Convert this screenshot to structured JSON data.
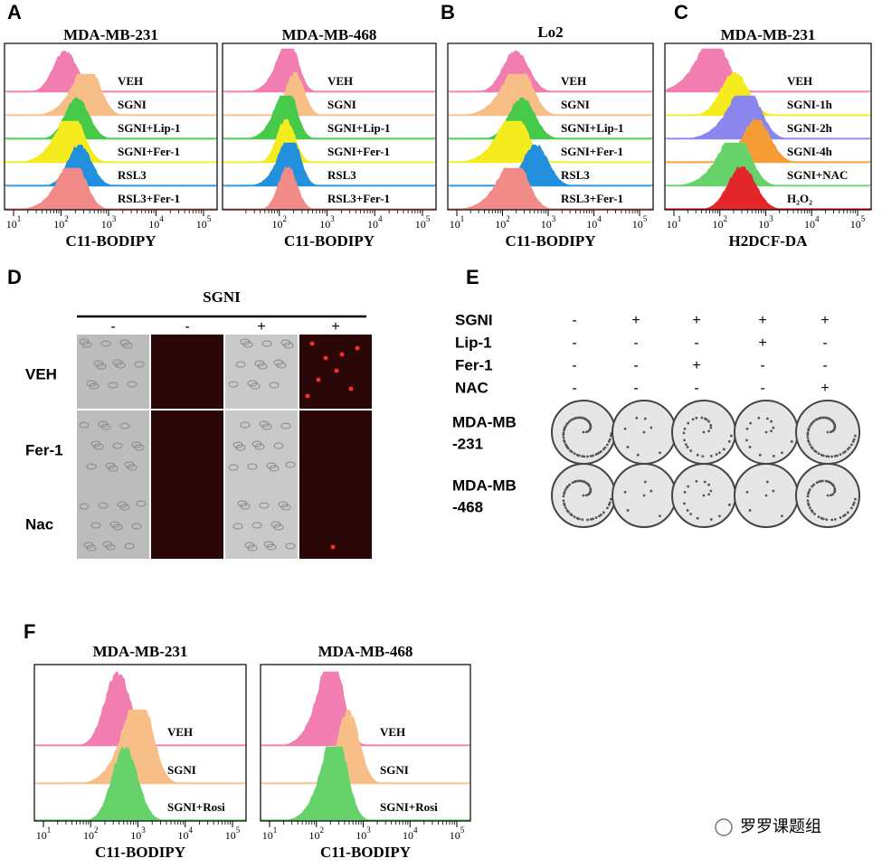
{
  "panel_labels": [
    "A",
    "B",
    "C",
    "D",
    "E",
    "F"
  ],
  "flow_panels": [
    {
      "title": "MDA-MB-231",
      "samples": [
        "VEH",
        "SGNI",
        "SGNI+Lip-1",
        "SGNI+Fer-1",
        "RSL3",
        "RSL3+Fer-1"
      ],
      "x_label": "C11-BODIPY",
      "tick_base": "10",
      "tick_exponents": [
        1,
        2,
        3,
        4,
        5
      ]
    },
    {
      "title": "MDA-MB-468",
      "samples": [
        "VEH",
        "SGNI",
        "SGNI+Lip-1",
        "SGNI+Fer-1",
        "RSL3",
        "RSL3+Fer-1"
      ],
      "x_label": "C11-BODIPY",
      "tick_base": "10",
      "tick_exponents": [
        2,
        3,
        4,
        5
      ]
    },
    {
      "title": "Lo2",
      "samples": [
        "VEH",
        "SGNI",
        "SGNI+Lip-1",
        "SGNI+Fer-1",
        "RSL3",
        "RSL3+Fer-1"
      ],
      "x_label": "C11-BODIPY",
      "tick_base": "10",
      "tick_exponents": [
        1,
        2,
        3,
        4,
        5
      ]
    },
    {
      "title": "MDA-MB-231",
      "samples": [
        "VEH",
        "SGNI-1h",
        "SGNI-2h",
        "SGNI-4h",
        "SGNI+NAC",
        "H₂O₂"
      ],
      "x_label": "H2DCF-DA",
      "tick_base": "10",
      "tick_exponents": [
        1,
        2,
        3,
        4,
        5
      ]
    },
    {
      "title": "MDA-MB-231",
      "samples": [
        "VEH",
        "SGNI",
        "SGNI+Rosi"
      ],
      "x_label": "C11-BODIPY",
      "tick_base": "10",
      "tick_exponents": [
        1,
        2,
        3,
        4,
        5
      ]
    },
    {
      "title": "MDA-MB-468",
      "samples": [
        "VEH",
        "SGNI",
        "SGNI+Rosi"
      ],
      "x_label": "C11-BODIPY",
      "tick_base": "10",
      "tick_exponents": [
        1,
        2,
        3,
        4,
        5
      ]
    }
  ],
  "panel_d": {
    "treatment": "SGNI",
    "column_signs": [
      "-",
      "-",
      "+",
      "+"
    ],
    "row_labels": [
      "VEH",
      "Fer-1",
      "Nac"
    ]
  },
  "panel_e": {
    "treatments": [
      {
        "name": "SGNI",
        "signs": [
          "-",
          "+",
          "+",
          "+",
          "+"
        ]
      },
      {
        "name": "Lip-1",
        "signs": [
          "-",
          "-",
          "-",
          "+",
          "-"
        ]
      },
      {
        "name": "Fer-1",
        "signs": [
          "-",
          "-",
          "+",
          "-",
          "-"
        ]
      },
      {
        "name": "NAC",
        "signs": [
          "-",
          "-",
          "-",
          "-",
          "+"
        ]
      }
    ],
    "cell_lines": [
      [
        "MDA-MB",
        "-231"
      ],
      [
        "MDA-MB",
        "-468"
      ]
    ]
  },
  "watermark": "罗罗课题组"
}
